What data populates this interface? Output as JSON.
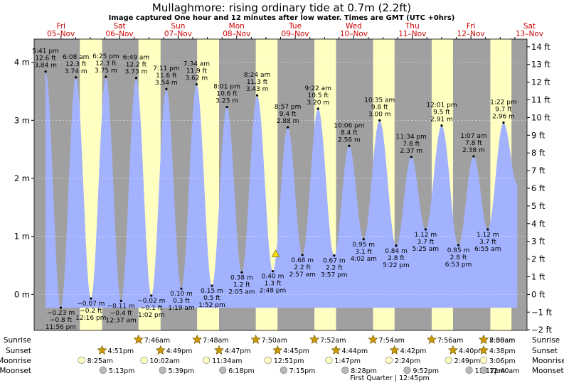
{
  "title": "Mullaghmore: rising  ordinary tide at 0.7m (2.2ft)",
  "subtitle": "Image captured One hour and 12 minutes after low water. Times are GMT (UTC +0hrs)",
  "chart_data": {
    "type": "area",
    "y_left": {
      "unit": "m",
      "range": [
        -0.62,
        4.4
      ],
      "ticks": [
        0,
        1,
        2,
        3,
        4
      ],
      "tick_labels": [
        "0 m",
        "1 m",
        "2 m",
        "3 m",
        "4 m"
      ]
    },
    "y_right": {
      "unit": "ft",
      "ticks": [
        -2,
        -1,
        0,
        1,
        2,
        3,
        4,
        5,
        6,
        7,
        8,
        9,
        10,
        11,
        12,
        13,
        14
      ],
      "tick_labels": [
        "−2 ft",
        "−1 ft",
        "0 ft",
        "1 ft",
        "2 ft",
        "3 ft",
        "4 ft",
        "5 ft",
        "6 ft",
        "7 ft",
        "8 ft",
        "9 ft",
        "10 ft",
        "11 ft",
        "12 ft",
        "13 ft",
        "14 ft"
      ]
    },
    "x_range_hours": [
      -11,
      191
    ],
    "days": [
      {
        "name": "Fri",
        "date": "05–Nov"
      },
      {
        "name": "Sat",
        "date": "06–Nov"
      },
      {
        "name": "Sun",
        "date": "07–Nov"
      },
      {
        "name": "Mon",
        "date": "08–Nov"
      },
      {
        "name": "Tue",
        "date": "09–Nov"
      },
      {
        "name": "Wed",
        "date": "10–Nov"
      },
      {
        "name": "Thu",
        "date": "11–Nov"
      },
      {
        "name": "Fri",
        "date": "12–Nov"
      },
      {
        "name": "Sat",
        "date": "13–Nov"
      }
    ],
    "daylight": [
      {
        "day": 0,
        "sunrise": 7.72,
        "sunset": 16.85
      },
      {
        "day": 1,
        "sunrise": 7.77,
        "sunset": 16.82
      },
      {
        "day": 2,
        "sunrise": 7.8,
        "sunset": 16.78
      },
      {
        "day": 3,
        "sunrise": 7.83,
        "sunset": 16.75
      },
      {
        "day": 4,
        "sunrise": 7.87,
        "sunset": 16.73
      },
      {
        "day": 5,
        "sunrise": 7.9,
        "sunset": 16.7
      },
      {
        "day": 6,
        "sunrise": 7.93,
        "sunset": 16.67
      },
      {
        "day": 7,
        "sunrise": 7.97,
        "sunset": 16.63
      },
      {
        "day": 8,
        "sunrise": 8.0,
        "sunset": 16.6
      }
    ],
    "tides": [
      {
        "hour": -6.32,
        "height": 3.84,
        "type": "high",
        "time": "5:41 pm",
        "ft": "12.6 ft",
        "m": "3.84 m"
      },
      {
        "hour": -0.07,
        "height": -0.23,
        "type": "low",
        "time": "11:56 pm",
        "ft": "−0.8 ft",
        "m": "−0.23 m"
      },
      {
        "hour": 6.13,
        "height": 3.74,
        "type": "high",
        "time": "6:08 am",
        "ft": "12.3 ft",
        "m": "3.74 m"
      },
      {
        "hour": 12.27,
        "height": -0.07,
        "type": "low",
        "time": "12:16 pm",
        "ft": "−0.2 ft",
        "m": "−0.07 m"
      },
      {
        "hour": 18.42,
        "height": 3.75,
        "type": "high",
        "time": "6:25 pm",
        "ft": "12.3 ft",
        "m": "3.75 m"
      },
      {
        "hour": 24.62,
        "height": -0.11,
        "type": "low",
        "time": "12:37 am",
        "ft": "−0.4 ft",
        "m": "−0.11 m"
      },
      {
        "hour": 30.82,
        "height": 3.73,
        "type": "high",
        "time": "6:49 am",
        "ft": "12.2 ft",
        "m": "3.73 m"
      },
      {
        "hour": 37.03,
        "height": -0.02,
        "type": "low",
        "time": "1:02 pm",
        "ft": "−0.1 ft",
        "m": "−0.02 m"
      },
      {
        "hour": 43.18,
        "height": 3.54,
        "type": "high",
        "time": "7:11 pm",
        "ft": "11.6 ft",
        "m": "3.54 m"
      },
      {
        "hour": 49.32,
        "height": 0.1,
        "type": "low",
        "time": "1:19 am",
        "ft": "0.3 ft",
        "m": "0.10 m"
      },
      {
        "hour": 55.57,
        "height": 3.62,
        "type": "high",
        "time": "7:34 am",
        "ft": "11.9 ft",
        "m": "3.62 m"
      },
      {
        "hour": 61.87,
        "height": 0.15,
        "type": "low",
        "time": "1:52 pm",
        "ft": "0.5 ft",
        "m": "0.15 m"
      },
      {
        "hour": 68.02,
        "height": 3.23,
        "type": "high",
        "time": "8:01 pm",
        "ft": "10.6 ft",
        "m": "3.23 m"
      },
      {
        "hour": 74.08,
        "height": 0.38,
        "type": "low",
        "time": "2:05 am",
        "ft": "1.2 ft",
        "m": "0.38 m"
      },
      {
        "hour": 80.4,
        "height": 3.43,
        "type": "high",
        "time": "8:24 am",
        "ft": "11.3 ft",
        "m": "3.43 m"
      },
      {
        "hour": 86.8,
        "height": 0.4,
        "type": "low",
        "time": "2:48 pm",
        "ft": "1.3 ft",
        "m": "0.40 m"
      },
      {
        "hour": 92.95,
        "height": 2.88,
        "type": "high",
        "time": "8:57 pm",
        "ft": "9.4 ft",
        "m": "2.88 m"
      },
      {
        "hour": 98.95,
        "height": 0.68,
        "type": "low",
        "time": "2:57 am",
        "ft": "2.2 ft",
        "m": "0.68 m"
      },
      {
        "hour": 105.37,
        "height": 3.2,
        "type": "high",
        "time": "9:22 am",
        "ft": "10.5 ft",
        "m": "3.20 m"
      },
      {
        "hour": 111.95,
        "height": 0.67,
        "type": "low",
        "time": "3:57 pm",
        "ft": "2.2 ft",
        "m": "0.67 m"
      },
      {
        "hour": 118.1,
        "height": 2.56,
        "type": "high",
        "time": "10:06 pm",
        "ft": "8.4 ft",
        "m": "2.56 m"
      },
      {
        "hour": 124.03,
        "height": 0.95,
        "type": "low",
        "time": "4:02 am",
        "ft": "3.1 ft",
        "m": "0.95 m"
      },
      {
        "hour": 130.58,
        "height": 3.0,
        "type": "high",
        "time": "10:35 am",
        "ft": "9.8 ft",
        "m": "3.00 m"
      },
      {
        "hour": 137.37,
        "height": 0.84,
        "type": "low",
        "time": "5:22 pm",
        "ft": "2.8 ft",
        "m": "0.84 m"
      },
      {
        "hour": 143.57,
        "height": 2.37,
        "type": "high",
        "time": "11:34 pm",
        "ft": "7.8 ft",
        "m": "2.37 m"
      },
      {
        "hour": 149.42,
        "height": 1.12,
        "type": "low",
        "time": "5:25 am",
        "ft": "3.7 ft",
        "m": "1.12 m"
      },
      {
        "hour": 156.02,
        "height": 2.91,
        "type": "high",
        "time": "12:01 pm",
        "ft": "9.5 ft",
        "m": "2.91 m"
      },
      {
        "hour": 162.88,
        "height": 0.85,
        "type": "low",
        "time": "6:53 pm",
        "ft": "2.8 ft",
        "m": "0.85 m"
      },
      {
        "hour": 169.12,
        "height": 2.38,
        "type": "high",
        "time": "1:07 am",
        "ft": "7.8 ft",
        "m": "2.38 m"
      },
      {
        "hour": 174.92,
        "height": 1.12,
        "type": "low",
        "time": "6:55 am",
        "ft": "3.7 ft",
        "m": "1.12 m"
      },
      {
        "hour": 181.37,
        "height": 2.96,
        "type": "high",
        "time": "1:22 pm",
        "ft": "9.7 ft",
        "m": "2.96 m"
      }
    ],
    "curve_end": {
      "hour": 187.0,
      "height": 1.9
    },
    "marker": {
      "hour": 88.0,
      "height": 0.7,
      "label": "current"
    },
    "rows": [
      {
        "label": "Sunrise",
        "icon": "sun-icon",
        "events": [
          {
            "hour": 31.77,
            "text": "7:46am"
          },
          {
            "hour": 55.8,
            "text": "7:48am"
          },
          {
            "hour": 79.83,
            "text": "7:50am"
          },
          {
            "hour": 103.87,
            "text": "7:52am"
          },
          {
            "hour": 127.9,
            "text": "7:54am"
          },
          {
            "hour": 151.93,
            "text": "7:56am"
          },
          {
            "hour": 175.97,
            "text": "7:58am"
          },
          {
            "hour": 200.0,
            "text": "8:00am"
          }
        ]
      },
      {
        "label": "Sunset",
        "icon": "sunset-icon",
        "events": [
          {
            "hour": 16.85,
            "text": "4:51pm"
          },
          {
            "hour": 40.82,
            "text": "4:49pm"
          },
          {
            "hour": 64.78,
            "text": "4:47pm"
          },
          {
            "hour": 88.75,
            "text": "4:45pm"
          },
          {
            "hour": 112.73,
            "text": "4:44pm"
          },
          {
            "hour": 136.7,
            "text": "4:42pm"
          },
          {
            "hour": 160.67,
            "text": "4:40pm"
          },
          {
            "hour": 184.63,
            "text": "4:38pm"
          }
        ]
      },
      {
        "label": "Moonrise",
        "icon": "moonrise-icon",
        "events": [
          {
            "hour": 8.42,
            "text": "8:25am"
          },
          {
            "hour": 34.03,
            "text": "10:02am"
          },
          {
            "hour": 59.57,
            "text": "11:34am"
          },
          {
            "hour": 84.85,
            "text": "12:51pm"
          },
          {
            "hour": 109.78,
            "text": "1:47pm"
          },
          {
            "hour": 134.4,
            "text": "2:24pm"
          },
          {
            "hour": 158.82,
            "text": "2:49pm"
          },
          {
            "hour": 183.1,
            "text": "3:06pm"
          }
        ]
      },
      {
        "label": "Moonset",
        "icon": "moonset-icon",
        "events": [
          {
            "hour": 17.22,
            "text": "5:13pm"
          },
          {
            "hour": 41.65,
            "text": "5:39pm"
          },
          {
            "hour": 66.3,
            "text": "6:18pm"
          },
          {
            "hour": 91.25,
            "text": "7:15pm"
          },
          {
            "hour": 116.47,
            "text": "8:28pm"
          },
          {
            "hour": 141.87,
            "text": "9:52pm"
          },
          {
            "hour": 167.28,
            "text": "11:17pm"
          },
          {
            "hour": 192.67,
            "text": "12:40am"
          }
        ]
      }
    ],
    "moon_phase": "First Quarter | 12:45pm"
  },
  "colors": {
    "night": "#a0a0a0",
    "day": "#ffffc2",
    "water": "#a3b2ff",
    "day_label": "#cc0000",
    "sun_star": "#cc9900",
    "moonrise": "#ffffc2",
    "moonset": "#b8b8b8",
    "marker": "#ffe600"
  }
}
